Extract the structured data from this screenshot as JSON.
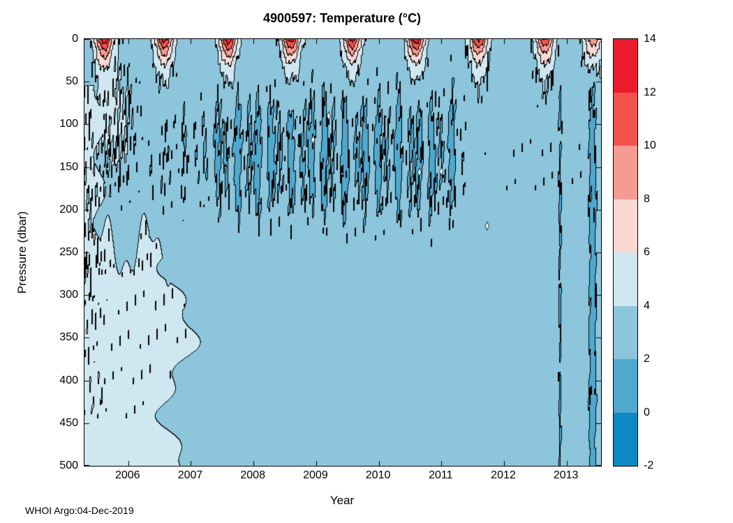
{
  "footer": {
    "credit": "WHOI Argo:04-Dec-2019"
  },
  "chart_data": {
    "type": "heatmap",
    "render": "filled-contour",
    "title": "4900597:  Temperature (°C)",
    "xlabel": "Year",
    "ylabel": "Pressure (dbar)",
    "x_range": [
      2005.3,
      2013.55
    ],
    "y_range": [
      0,
      500
    ],
    "y_axis_inverted": true,
    "x_ticks": [
      2006,
      2007,
      2008,
      2009,
      2010,
      2011,
      2012,
      2013
    ],
    "y_ticks": [
      0,
      50,
      100,
      150,
      200,
      250,
      300,
      350,
      400,
      450,
      500
    ],
    "levels": [
      -2,
      0,
      2,
      4,
      6,
      8,
      10,
      12,
      14
    ],
    "colorbar_ticks": [
      14,
      12,
      10,
      8,
      6,
      4,
      2,
      0,
      -2
    ],
    "colors": [
      "#0d88c2",
      "#4fa8ce",
      "#8cc5dc",
      "#cfe7f1",
      "#fbd9d3",
      "#f69b92",
      "#f3534c",
      "#ec1b2e"
    ],
    "contour_line_color": "#000000",
    "field_model": {
      "background_temp": 3.1,
      "deep_warm_pool": {
        "t_edge": 2006.8,
        "p_edge": 245,
        "dT": 1.45
      },
      "left_edge_warm": {
        "t_edge": 2005.55,
        "p_min": 55,
        "p_max": 440,
        "dT": 1.1
      },
      "upper_left_warm": {
        "t_center": 2005.78,
        "t_sigma": 0.33,
        "p_center": 95,
        "p_sigma": 75,
        "dT": 1.2
      },
      "cold_band": {
        "t_start": 2006.15,
        "t_full": 2007.35,
        "t_end": 2011.35,
        "p_center": 135,
        "p_sigma": 85,
        "strength": 2.1
      },
      "summer_peaks": [
        {
          "year": 2005,
          "peak_time": 2005.62,
          "max_temp": 13.5
        },
        {
          "year": 2006,
          "peak_time": 2006.58,
          "max_temp": 13.2
        },
        {
          "year": 2007,
          "peak_time": 2007.6,
          "max_temp": 13.8
        },
        {
          "year": 2008,
          "peak_time": 2008.6,
          "max_temp": 13.4
        },
        {
          "year": 2009,
          "peak_time": 2009.58,
          "max_temp": 12.8
        },
        {
          "year": 2010,
          "peak_time": 2010.6,
          "max_temp": 13.6
        },
        {
          "year": 2011,
          "peak_time": 2011.6,
          "max_temp": 12.6
        },
        {
          "year": 2012,
          "peak_time": 2012.66,
          "max_temp": 12.2
        },
        {
          "year": 2013,
          "peak_time": 2013.42,
          "max_temp": 9.5
        }
      ],
      "season_width_yr": 0.135,
      "surface_decay_dbar": 26,
      "cold_streaks": [
        {
          "t": 2012.9,
          "dT": -1.3,
          "w": 0.03
        },
        {
          "t": 2013.42,
          "dT": -1.8,
          "w": 0.07
        }
      ],
      "missing_data_markers": [
        {
          "t": 2009.2,
          "p": 90
        },
        {
          "t": 2008.95,
          "p": 118
        },
        {
          "t": 2010.65,
          "p": 156
        },
        {
          "t": 2011.0,
          "p": 155
        },
        {
          "t": 2011.73,
          "p": 219
        }
      ]
    }
  }
}
